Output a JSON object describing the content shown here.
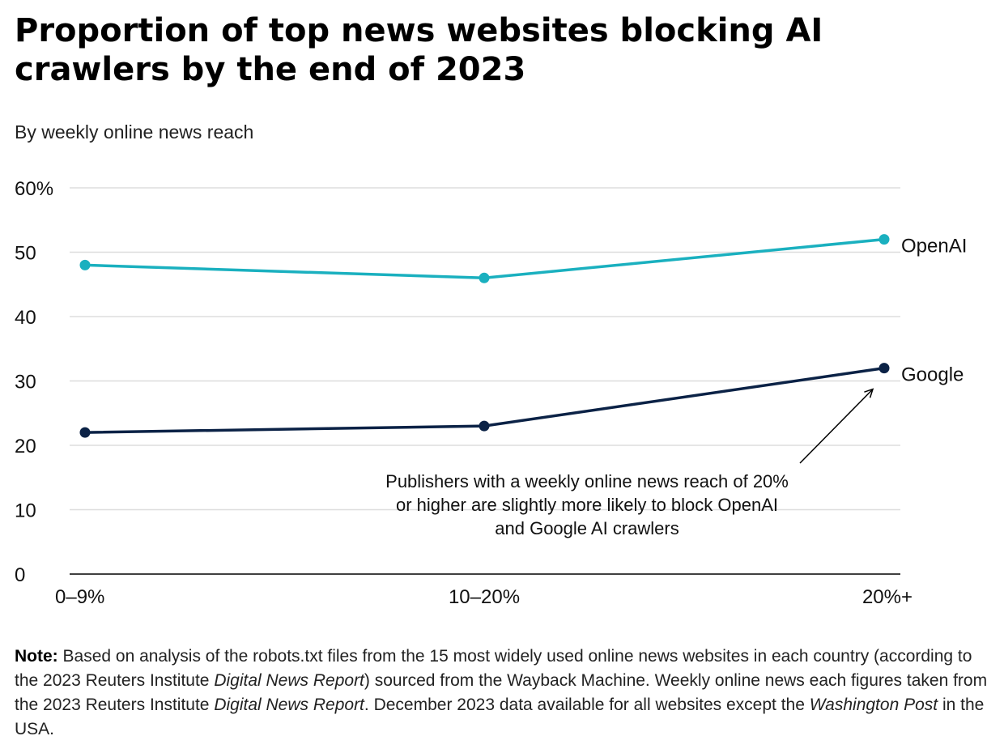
{
  "title": "Proportion of top news websites blocking AI crawlers by the end of 2023",
  "subtitle": "By weekly online news reach",
  "chart_data": {
    "type": "line",
    "title": "Proportion of top news websites blocking AI crawlers by the end of 2023",
    "subtitle": "By weekly online news reach",
    "categories": [
      "0–9%",
      "10–20%",
      "20%+"
    ],
    "series": [
      {
        "name": "OpenAI",
        "values": [
          48,
          46,
          52
        ],
        "color": "#1ab0bf"
      },
      {
        "name": "Google",
        "values": [
          22,
          23,
          32
        ],
        "color": "#0b2246"
      }
    ],
    "ylim": [
      0,
      60
    ],
    "yticks": [
      0,
      10,
      20,
      30,
      40,
      50,
      60
    ],
    "ytick_labels": [
      "0",
      "10",
      "20",
      "30",
      "40",
      "50",
      "60%"
    ],
    "xlabel": "",
    "ylabel": "",
    "grid": true,
    "legend": "inline-right",
    "annotation": {
      "lines": [
        "Publishers with a weekly online news reach of 20%",
        "or higher are slightly more likely to block OpenAI",
        "and Google AI crawlers"
      ],
      "points_to": {
        "series": "Google",
        "category": "20%+"
      }
    }
  },
  "note": {
    "label": "Note:",
    "part1": " Based on analysis of the robots.txt files from the 15 most widely used online news websites in each country (according to the 2023 Reuters Institute ",
    "italic1": "Digital News Report",
    "part2": ") sourced from the Wayback Machine. Weekly online news each figures taken from the 2023 Reuters Institute ",
    "italic2": "Digital News Report",
    "part3": ". December 2023 data available for all websites except the ",
    "italic3": "Washington Post",
    "part4": " in the USA."
  },
  "colors": {
    "openai": "#1ab0bf",
    "google": "#0b2246",
    "grid": "#dddddd",
    "axis": "#000000"
  }
}
